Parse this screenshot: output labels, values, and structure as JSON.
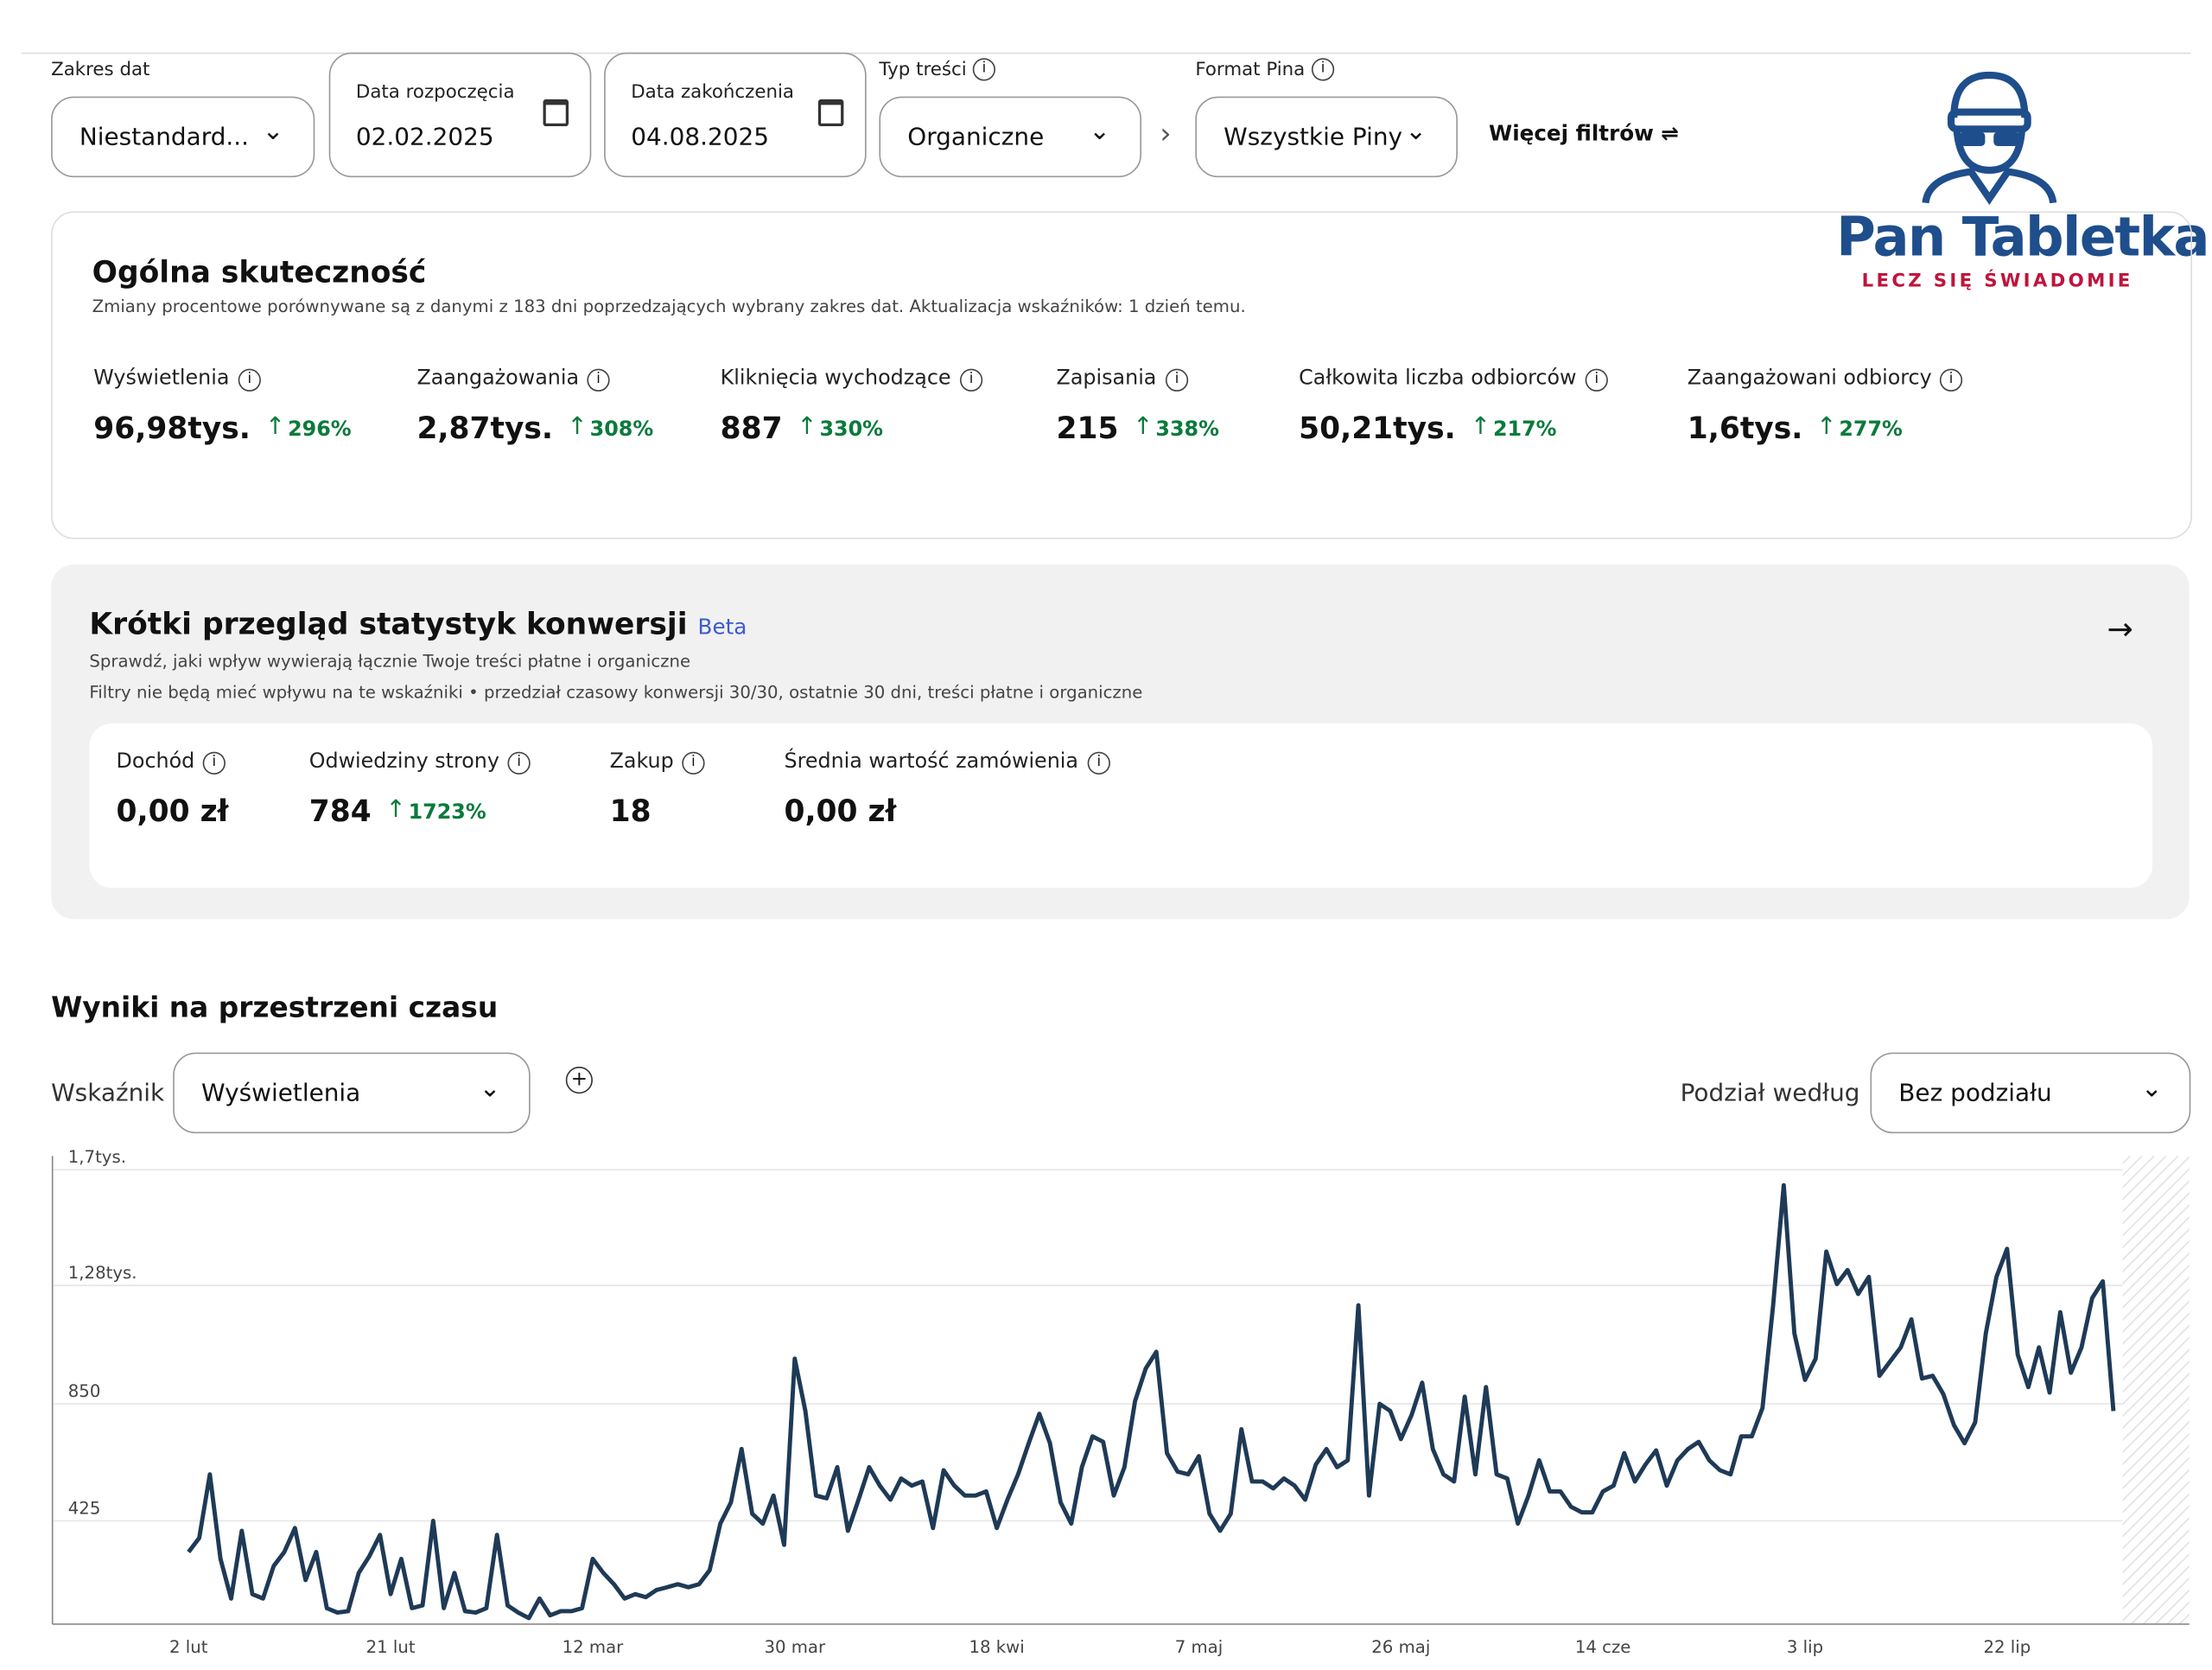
{
  "filters": [
    {
      "label": "Zakres dat",
      "value": "Niestandard..."
    },
    {
      "label": "Data rozpoczęcia",
      "value": "02.02.2025"
    },
    {
      "label": "Data zakończenia",
      "value": "04.08.2025"
    },
    {
      "label": "Typ treści",
      "value": "Organiczne"
    },
    {
      "label": "Format Pina",
      "value": "Wszystkie Piny"
    }
  ],
  "more_filters": "Więcej filtrów",
  "logo": {
    "name": "Pan Tabletka",
    "tagline": "LECZ SIĘ ŚWIADOMIE"
  },
  "overview": {
    "title": "Ogólna skuteczność",
    "subtitle": "Zmiany procentowe porównywane są z danymi z 183 dni poprzedzających wybrany zakres dat. Aktualizacja wskaźników: 1 dzień temu.",
    "metrics": [
      {
        "label": "Wyświetlenia",
        "value": "96,98tys.",
        "change": "296%"
      },
      {
        "label": "Zaangażowania",
        "value": "2,87tys.",
        "change": "308%"
      },
      {
        "label": "Kliknięcia wychodzące",
        "value": "887",
        "change": "330%"
      },
      {
        "label": "Zapisania",
        "value": "215",
        "change": "338%"
      },
      {
        "label": "Całkowita liczba odbiorców",
        "value": "50,21tys.",
        "change": "217%"
      },
      {
        "label": "Zaangażowani odbiorcy",
        "value": "1,6tys.",
        "change": "277%"
      }
    ]
  },
  "conversion": {
    "title": "Krótki przegląd statystyk konwersji",
    "badge": "Beta",
    "subtitle_lines": [
      "Sprawdź, jaki wpływ wywierają łącznie Twoje treści płatne i organiczne",
      "Filtry nie będą mieć wpływu na te wskaźniki • przedział czasowy konwersji 30/30, ostatnie 30 dni, treści płatne i organiczne"
    ],
    "metrics": [
      {
        "label": "Dochód",
        "value": "0,00 zł"
      },
      {
        "label": "Odwiedziny strony",
        "value": "784",
        "change": "1723%"
      },
      {
        "label": "Zakup",
        "value": "18"
      },
      {
        "label": "Średnia wartość zamówienia",
        "value": "0,00 zł"
      }
    ]
  },
  "results": {
    "title": "Wyniki na przestrzeni czasu",
    "metric_label": "Wskaźnik",
    "metric": "Wyświetlenia",
    "split_label": "Podział według",
    "split": "Bez podziału"
  },
  "chart_data": {
    "type": "line",
    "color": "#1e3a56",
    "categories": [
      "2 lut",
      null,
      null,
      null,
      null,
      null,
      null,
      null,
      null,
      null,
      null,
      null,
      null,
      null,
      null,
      null,
      null,
      null,
      null,
      "21 lut",
      null,
      null,
      null,
      null,
      null,
      null,
      null,
      null,
      null,
      null,
      null,
      null,
      null,
      null,
      null,
      null,
      null,
      null,
      "12 mar",
      null,
      null,
      null,
      null,
      null,
      null,
      null,
      null,
      null,
      null,
      null,
      null,
      null,
      null,
      null,
      null,
      null,
      null,
      "30 mar",
      null,
      null,
      null,
      null,
      null,
      null,
      null,
      null,
      null,
      null,
      null,
      null,
      null,
      null,
      null,
      null,
      null,
      null,
      "18 kwi",
      null,
      null,
      null,
      null,
      null,
      null,
      null,
      null,
      null,
      null,
      null,
      null,
      null,
      null,
      null,
      null,
      null,
      null,
      "7 maj",
      null,
      null,
      null,
      null,
      null,
      null,
      null,
      null,
      null,
      null,
      null,
      null,
      null,
      null,
      null,
      null,
      null,
      null,
      "26 maj",
      null,
      null,
      null,
      null,
      null,
      null,
      null,
      null,
      null,
      null,
      null,
      null,
      null,
      null,
      null,
      null,
      null,
      null,
      "14 cze",
      null,
      null,
      null,
      null,
      null,
      null,
      null,
      null,
      null,
      null,
      null,
      null,
      null,
      null,
      null,
      null,
      null,
      null,
      "3 lip",
      null,
      null,
      null,
      null,
      null,
      null,
      null,
      null,
      null,
      null,
      null,
      null,
      null,
      null,
      null,
      null,
      null,
      null,
      "22 lip",
      null,
      null,
      null,
      null,
      null,
      null,
      null,
      null,
      null,
      null
    ],
    "values": [
      312,
      363,
      594,
      287,
      143,
      389,
      159,
      143,
      261,
      312,
      399,
      210,
      312,
      108,
      92,
      97,
      236,
      297,
      374,
      159,
      287,
      108,
      118,
      425,
      108,
      236,
      97,
      92,
      108,
      374,
      118,
      92,
      72,
      143,
      82,
      97,
      97,
      108,
      287,
      236,
      195,
      143,
      159,
      148,
      174,
      184,
      195,
      184,
      195,
      246,
      415,
      492,
      686,
      451,
      415,
      517,
      338,
      1014,
      824,
      517,
      507,
      620,
      389,
      502,
      620,
      553,
      502,
      579,
      553,
      568,
      399,
      609,
      553,
      517,
      517,
      532,
      399,
      502,
      594,
      707,
      814,
      707,
      492,
      415,
      620,
      732,
      712,
      517,
      620,
      860,
      978,
      1039,
      671,
      604,
      594,
      660,
      451,
      389,
      451,
      758,
      568,
      568,
      543,
      579,
      553,
      502,
      630,
      686,
      620,
      645,
      1208,
      517,
      850,
      824,
      722,
      809,
      927,
      686,
      594,
      568,
      876,
      594,
      911,
      594,
      579,
      415,
      517,
      645,
      532,
      532,
      476,
      456,
      456,
      532,
      553,
      671,
      568,
      630,
      681,
      553,
      645,
      686,
      712,
      645,
      609,
      594,
      732,
      732,
      835,
      1208,
      1644,
      1106,
      937,
      1014,
      1403,
      1285,
      1336,
      1249,
      1311,
      952,
      1004,
      1055,
      1157,
      942,
      952,
      886,
      773,
      707,
      783,
      1106,
      1311,
      1413,
      1029,
      911,
      1055,
      891,
      1183,
      963,
      1055,
      1234,
      1295,
      824
    ],
    "ylim": [
      50,
      1750
    ],
    "yticks": [
      {
        "value": 425,
        "label": "425"
      },
      {
        "value": 850,
        "label": "850"
      },
      {
        "value": 1280,
        "label": "1,28tys."
      },
      {
        "value": 1700,
        "label": "1,7tys."
      }
    ],
    "grid": true
  }
}
